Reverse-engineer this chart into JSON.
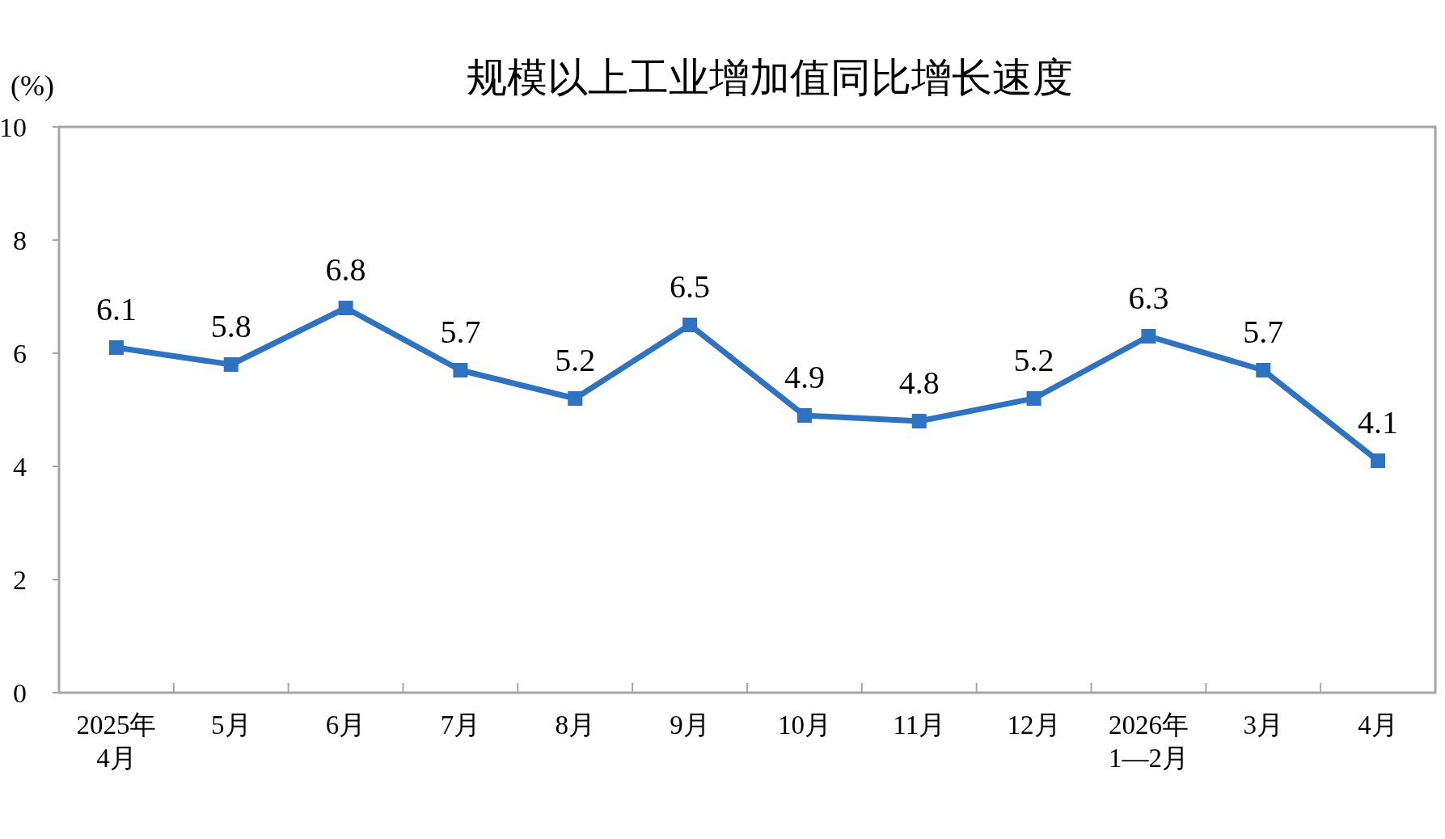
{
  "chart_data": {
    "type": "line",
    "title": "规模以上工业增加值同比增长速度",
    "ylabel": "(%)",
    "categories": [
      "2025年\n4月",
      "5月",
      "6月",
      "7月",
      "8月",
      "9月",
      "10月",
      "11月",
      "12月",
      "2026年\n1—2月",
      "3月",
      "4月"
    ],
    "series": [
      {
        "color": "#2e72c4",
        "values": [
          6.1,
          5.8,
          6.8,
          5.7,
          5.2,
          6.5,
          4.9,
          4.8,
          5.2,
          6.3,
          5.7,
          4.1
        ]
      }
    ],
    "ylim": [
      0,
      10
    ],
    "yticks": [
      0,
      2,
      4,
      6,
      8,
      10
    ],
    "marker": "square",
    "line_style": "solid",
    "data_labels": true
  }
}
